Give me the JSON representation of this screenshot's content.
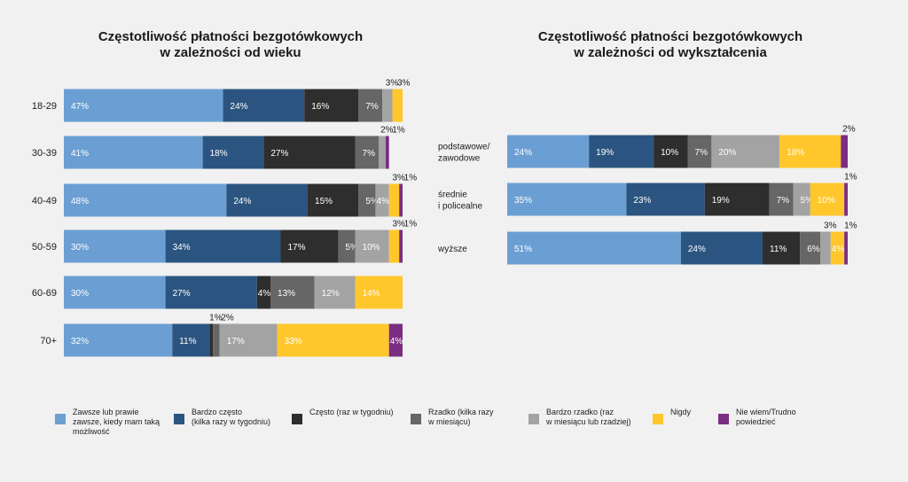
{
  "chart_data": [
    {
      "type": "bar",
      "orientation": "horizontal",
      "stacked": true,
      "title_line1": "Częstotliwość płatności bezgotówkowych",
      "title_line2": "w zależności od wieku",
      "categories": [
        "18-29",
        "30-39",
        "40-49",
        "50-59",
        "60-69",
        "70+"
      ],
      "values": [
        [
          47,
          24,
          16,
          7,
          3,
          3,
          0
        ],
        [
          41,
          18,
          27,
          7,
          2,
          0,
          1
        ],
        [
          48,
          24,
          15,
          5,
          4,
          3,
          1
        ],
        [
          30,
          34,
          17,
          5,
          10,
          3,
          1
        ],
        [
          30,
          27,
          4,
          13,
          12,
          14,
          0
        ],
        [
          32,
          11,
          1,
          2,
          17,
          33,
          4
        ]
      ],
      "xlim": [
        0,
        100
      ]
    },
    {
      "type": "bar",
      "orientation": "horizontal",
      "stacked": true,
      "title_line1": "Częstotliwość płatności bezgotówkowych",
      "title_line2": "w zależności od wykształcenia",
      "categories": [
        "podstawowe/\nzawodowe",
        "średnie\ni policealne",
        "wyższe"
      ],
      "values": [
        [
          24,
          19,
          10,
          7,
          20,
          18,
          2
        ],
        [
          35,
          23,
          19,
          7,
          5,
          10,
          1
        ],
        [
          51,
          24,
          11,
          6,
          3,
          4,
          1
        ]
      ],
      "xlim": [
        0,
        100
      ]
    }
  ],
  "series": [
    {
      "name": "Zawsze lub prawie zawsze, kiedy mam taką możliwość",
      "label": "Zawsze lub prawie\nzawsze, kiedy mam taką\nmożliwość",
      "color": "#6b9fd4"
    },
    {
      "name": "Bardzo często (kilka razy w tygodniu)",
      "label": "Bardzo często\n(kilka razy w tygodniu)",
      "color": "#2b5580"
    },
    {
      "name": "Często (raz w tygodniu)",
      "label": "Często (raz w tygodniu)",
      "color": "#2e2e2e"
    },
    {
      "name": "Rzadko (kilka razy w miesiącu)",
      "label": "Rzadko (kilka razy\nw miesiącu)",
      "color": "#666666"
    },
    {
      "name": "Bardzo rzadko (raz w miesiącu lub rzadziej)",
      "label": "Bardzo rzadko (raz\nw miesiącu lub rzadziej)",
      "color": "#a3a3a3"
    },
    {
      "name": "Nigdy",
      "label": "Nigdy",
      "color": "#ffc72c"
    },
    {
      "name": "Nie wiem/Trudno powiedzieć",
      "label": "Nie wiem/Trudno\npowiedzieć",
      "color": "#7b2d82"
    }
  ]
}
